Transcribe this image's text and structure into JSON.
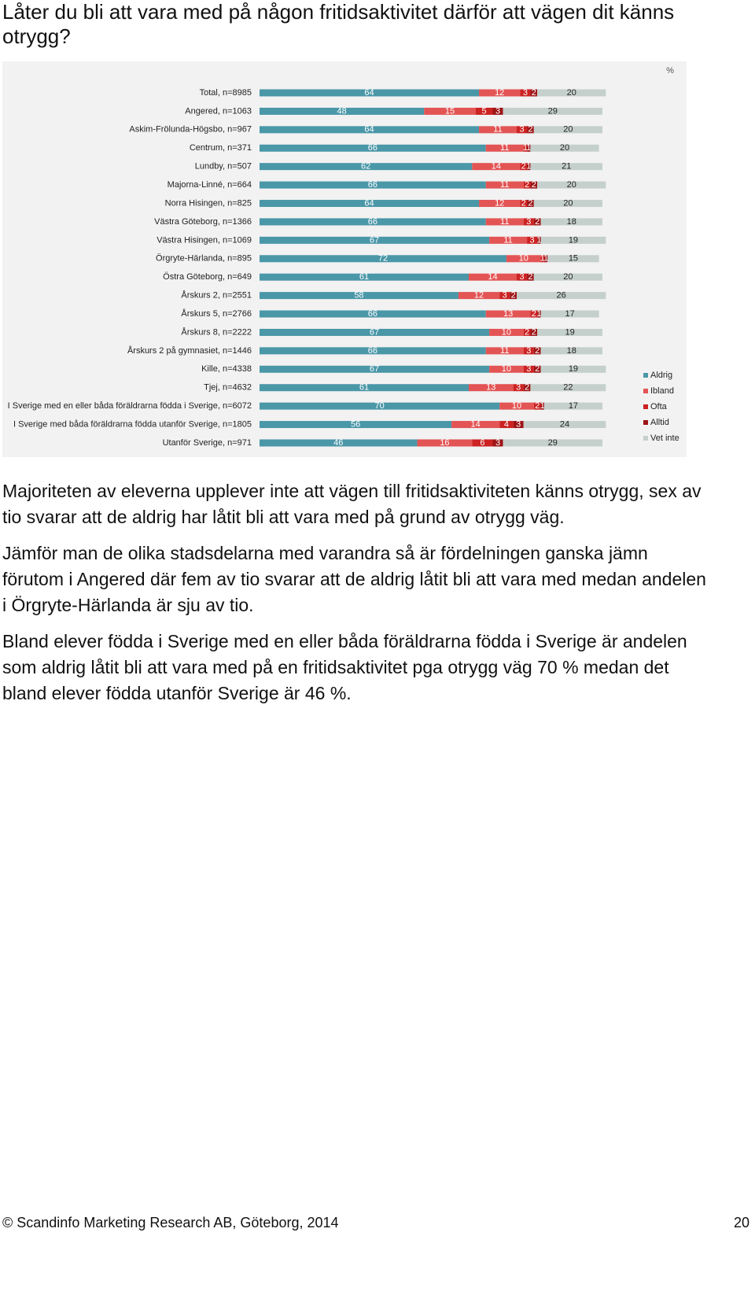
{
  "title": "Låter du bli att vara med på någon fritidsaktivitet därför att vägen dit känns otrygg?",
  "chart_data": {
    "type": "stacked-bar",
    "unit": "%",
    "categories": [
      "Total, n=8985",
      "Angered, n=1063",
      "Askim-Frölunda-Högsbo, n=967",
      "Centrum, n=371",
      "Lundby, n=507",
      "Majorna-Linné, n=664",
      "Norra Hisingen, n=825",
      "Västra Göteborg, n=1366",
      "Västra Hisingen, n=1069",
      "Örgryte-Härlanda, n=895",
      "Östra Göteborg, n=649",
      "Årskurs 2, n=2551",
      "Årskurs 5, n=2766",
      "Årskurs 8, n=2222",
      "Årskurs 2 på gymnasiet, n=1446",
      "Kille, n=4338",
      "Tjej, n=4632",
      "I Sverige med en eller båda föräldrarna födda i Sverige, n=6072",
      "I Sverige med båda föräldrarna födda utanför Sverige, n=1805",
      "Utanför Sverige, n=971"
    ],
    "series": [
      {
        "name": "Aldrig",
        "color": "#4a97a8",
        "values": [
          64,
          48,
          64,
          66,
          62,
          66,
          64,
          66,
          67,
          72,
          61,
          58,
          66,
          67,
          66,
          67,
          61,
          70,
          56,
          46
        ]
      },
      {
        "name": "Ibland",
        "color": "#e35454",
        "values": [
          12,
          15,
          11,
          11,
          14,
          11,
          12,
          11,
          11,
          10,
          14,
          12,
          13,
          10,
          11,
          10,
          13,
          10,
          14,
          16
        ]
      },
      {
        "name": "Ofta",
        "color": "#cc2222",
        "values": [
          3,
          5,
          3,
          1,
          2,
          2,
          2,
          3,
          3,
          1,
          3,
          3,
          2,
          2,
          3,
          3,
          3,
          2,
          4,
          6
        ]
      },
      {
        "name": "Alltid",
        "color": "#9e1416",
        "values": [
          2,
          3,
          2,
          1,
          1,
          2,
          2,
          2,
          1,
          1,
          2,
          2,
          1,
          2,
          2,
          2,
          2,
          1,
          3,
          3
        ]
      },
      {
        "name": "Vet inte",
        "color": "#c5d0cc",
        "values": [
          20,
          29,
          20,
          20,
          21,
          20,
          20,
          18,
          19,
          15,
          20,
          26,
          17,
          19,
          18,
          19,
          22,
          17,
          24,
          29
        ]
      }
    ]
  },
  "paragraphs": [
    "Majoriteten av eleverna upplever inte att vägen till fritidsaktiviteten känns otrygg, sex av tio svarar att de aldrig har låtit bli att vara med på grund av otrygg väg.",
    "Jämför man de olika stadsdelarna med varandra så är fördelningen ganska jämn förutom i Angered där fem av tio svarar att de aldrig låtit bli att vara med medan andelen i Örgryte-Härlanda är sju av tio.",
    "Bland elever födda i Sverige med en eller båda föräldrarna födda i Sverige är andelen som aldrig låtit bli att vara med på en fritidsaktivitet pga otrygg väg 70 % medan det bland elever födda utanför Sverige är 46 %."
  ],
  "footer": {
    "text": "© Scandinfo Marketing Research AB, Göteborg, 2014",
    "page": "20"
  }
}
